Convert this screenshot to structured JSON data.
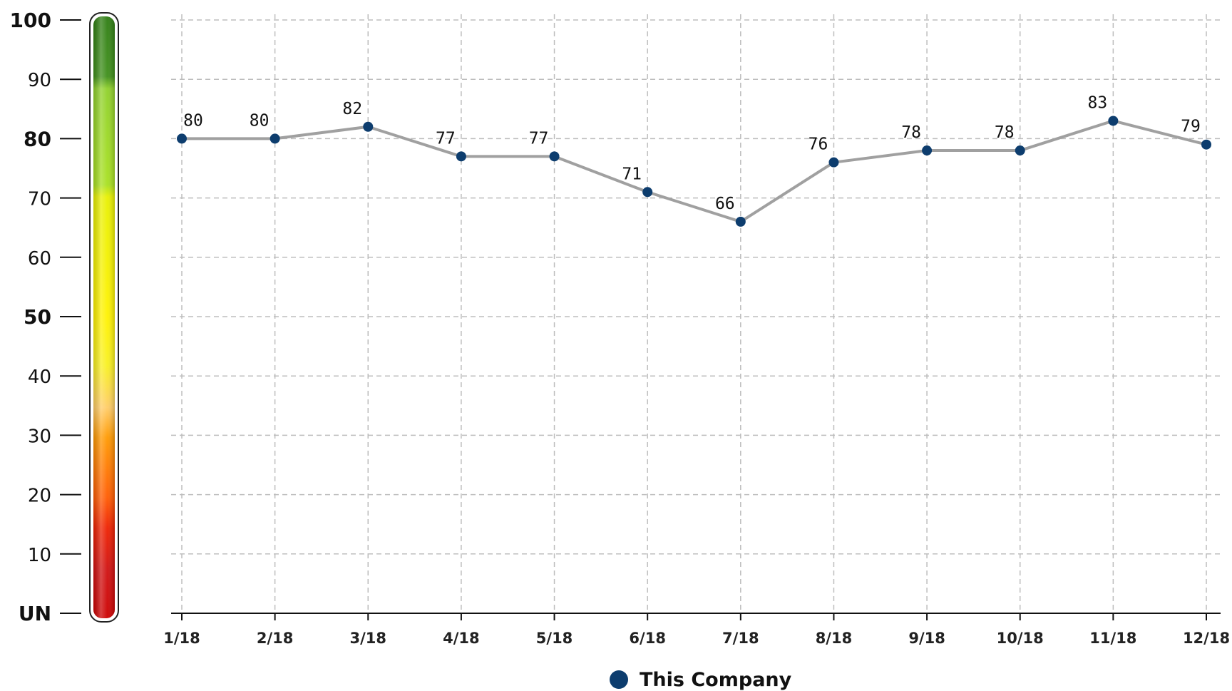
{
  "chart_data": {
    "type": "line",
    "categories": [
      "1/18",
      "2/18",
      "3/18",
      "4/18",
      "5/18",
      "6/18",
      "7/18",
      "8/18",
      "9/18",
      "10/18",
      "11/18",
      "12/18"
    ],
    "series": [
      {
        "name": "This Company",
        "values": [
          80,
          80,
          82,
          77,
          77,
          71,
          66,
          76,
          78,
          78,
          83,
          79
        ],
        "labels": [
          "80",
          "80",
          "82",
          "77",
          "77",
          "71",
          "66",
          "76",
          "78",
          "78",
          "83",
          "79"
        ],
        "color": "#0d3d6e",
        "line_color": "#a0a0a0"
      }
    ],
    "ylim": [
      0,
      100
    ],
    "y_ticks": [
      {
        "value": 100,
        "label": "100",
        "bold": true
      },
      {
        "value": 90,
        "label": "90",
        "bold": false
      },
      {
        "value": 80,
        "label": "80",
        "bold": true
      },
      {
        "value": 70,
        "label": "70",
        "bold": false
      },
      {
        "value": 60,
        "label": "60",
        "bold": false
      },
      {
        "value": 50,
        "label": "50",
        "bold": true
      },
      {
        "value": 40,
        "label": "40",
        "bold": false
      },
      {
        "value": 30,
        "label": "30",
        "bold": false
      },
      {
        "value": 20,
        "label": "20",
        "bold": false
      },
      {
        "value": 10,
        "label": "10",
        "bold": false
      },
      {
        "value": 0,
        "label": "UN",
        "bold": true
      }
    ],
    "grid": true,
    "legend_position": "bottom-center",
    "color_scale": {
      "stops": [
        {
          "value": 100,
          "color": "#2e7d12"
        },
        {
          "value": 90,
          "color": "#3f8f1a"
        },
        {
          "value": 88,
          "color": "#8fd02a"
        },
        {
          "value": 72,
          "color": "#a8e020"
        },
        {
          "value": 70,
          "color": "#e8f000"
        },
        {
          "value": 50,
          "color": "#fff200"
        },
        {
          "value": 42,
          "color": "#f8f020"
        },
        {
          "value": 35,
          "color": "#ffcc66"
        },
        {
          "value": 30,
          "color": "#ff9900"
        },
        {
          "value": 20,
          "color": "#ff5a00"
        },
        {
          "value": 15,
          "color": "#ee2000"
        },
        {
          "value": 8,
          "color": "#d01010"
        },
        {
          "value": 0,
          "color": "#cc0000"
        }
      ]
    }
  }
}
